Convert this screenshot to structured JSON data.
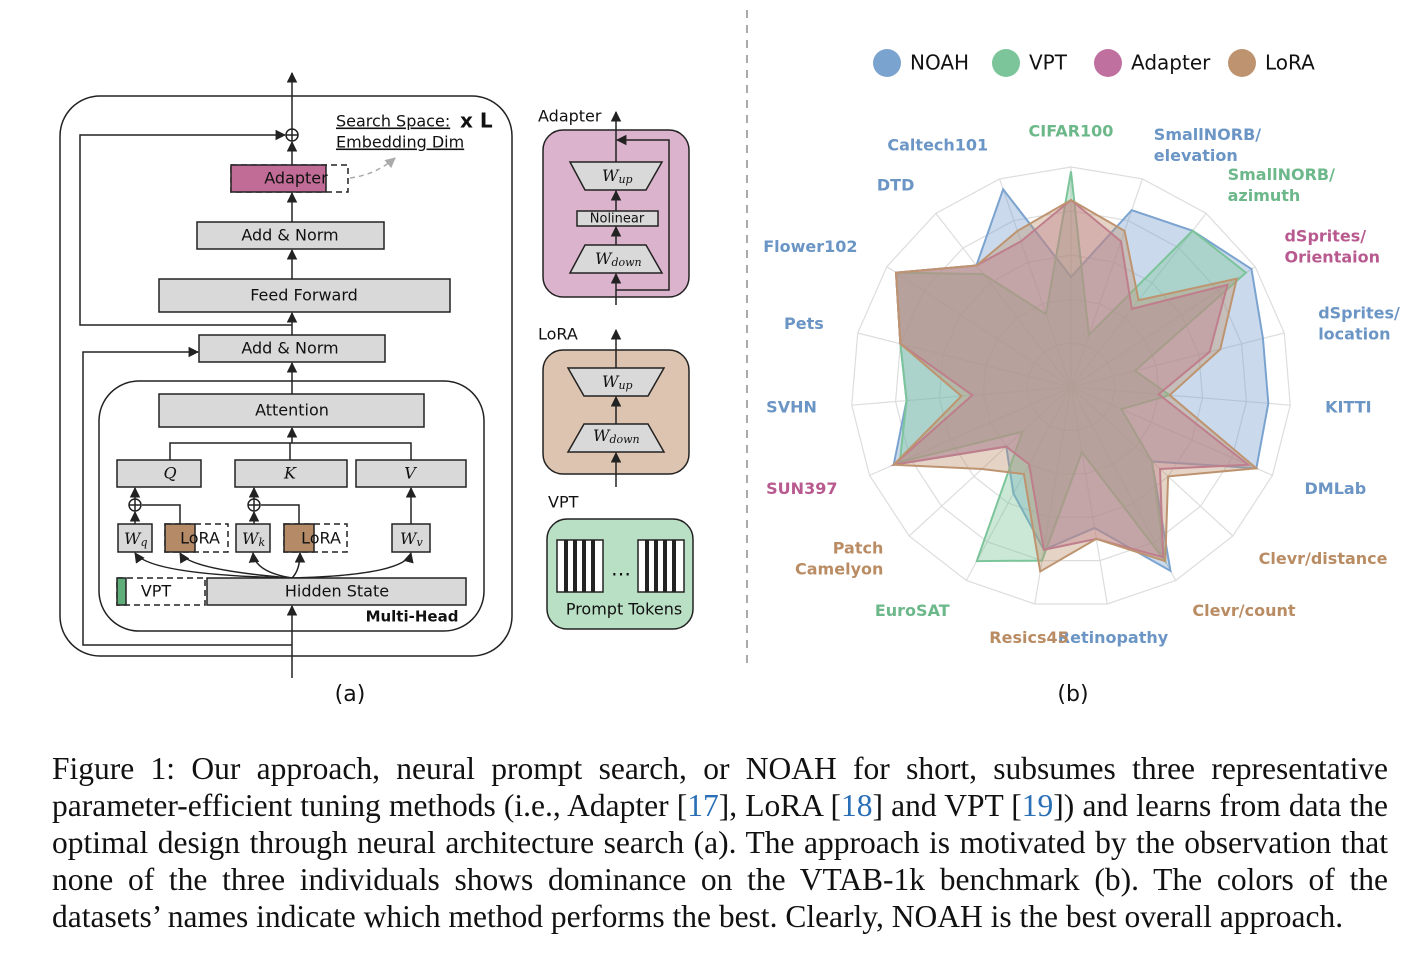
{
  "diagram": {
    "search_space": [
      "Search Space:",
      "Embedding Dim"
    ],
    "repeat": "x L",
    "adapter": "Adapter",
    "add_norm_top": "Add & Norm",
    "feed_forward": "Feed Forward",
    "add_norm_bottom": "Add & Norm",
    "attention": "Attention",
    "q": "Q",
    "k": "K",
    "v": "V",
    "wq": {
      "main": "W",
      "sub": "q"
    },
    "lora_q": "LoRA",
    "wk": {
      "main": "W",
      "sub": "k"
    },
    "lora_k": "LoRA",
    "wv": {
      "main": "W",
      "sub": "v"
    },
    "vpt": "VPT",
    "hidden_state": "Hidden State",
    "multi_head": "Multi-Head",
    "panel_label": "(a)"
  },
  "modules": {
    "adapter": {
      "title": "Adapter",
      "w_up": {
        "main": "W",
        "sub": "up"
      },
      "nonlinear": "Nolinear",
      "w_down": {
        "main": "W",
        "sub": "down"
      }
    },
    "lora": {
      "title": "LoRA",
      "w_up": {
        "main": "W",
        "sub": "up"
      },
      "w_down": {
        "main": "W",
        "sub": "down"
      }
    },
    "vpt": {
      "title": "VPT",
      "dots": "…",
      "prompt_tokens": "Prompt Tokens"
    }
  },
  "chart_data": {
    "type": "radar",
    "panel_label": "(b)",
    "categories": [
      [
        "CIFAR100"
      ],
      [
        "SmallNORB/",
        "elevation"
      ],
      [
        "SmallNORB/",
        "azimuth"
      ],
      [
        "dSprites/",
        "Orientaion"
      ],
      [
        "dSprites/",
        "location"
      ],
      [
        "KITTI"
      ],
      [
        "DMLab"
      ],
      [
        "Clevr/distance"
      ],
      [
        "Clevr/count"
      ],
      [
        "Retinopathy"
      ],
      [
        "Resics45"
      ],
      [
        "EuroSAT"
      ],
      [
        "Patch",
        "Camelyon"
      ],
      [
        "SUN397"
      ],
      [
        "SVHN"
      ],
      [
        "Pets"
      ],
      [
        "Flower102"
      ],
      [
        "DTD"
      ],
      [
        "Caltech101"
      ]
    ],
    "category_colors": [
      "#6cb88a",
      "#6a95c4",
      "#6cb88a",
      "#b85a8f",
      "#6a95c4",
      "#6a95c4",
      "#6a95c4",
      "#b98c64",
      "#b98c64",
      "#6a95c4",
      "#b98c64",
      "#6cb88a",
      "#b98c64",
      "#b85a8f",
      "#6a95c4",
      "#6a95c4",
      "#6a95c4",
      "#6a95c4",
      "#6a95c4"
    ],
    "series": [
      {
        "name": "NOAH",
        "color": "#7ba3cf",
        "values": [
          0.5,
          0.85,
          0.9,
          0.98,
          0.9,
          0.9,
          0.92,
          0.5,
          0.95,
          0.65,
          0.75,
          0.55,
          0.4,
          0.88,
          0.75,
          0.8,
          0.95,
          0.7,
          0.95
        ]
      },
      {
        "name": "VPT",
        "color": "#7cc59b",
        "values": [
          0.98,
          0.25,
          0.9,
          0.95,
          0.3,
          0.45,
          0.25,
          0.5,
          0.9,
          0.3,
          0.8,
          0.9,
          0.3,
          0.85,
          0.75,
          0.8,
          0.95,
          0.65,
          0.35
        ]
      },
      {
        "name": "Adapter",
        "color": "#c0709e",
        "values": [
          0.85,
          0.7,
          0.45,
          0.85,
          0.65,
          0.4,
          0.88,
          0.55,
          0.88,
          0.7,
          0.75,
          0.4,
          0.4,
          0.88,
          0.45,
          0.8,
          0.95,
          0.7,
          0.7
        ]
      },
      {
        "name": "LoRA",
        "color": "#be9470",
        "values": [
          0.85,
          0.75,
          0.5,
          0.9,
          0.7,
          0.45,
          0.92,
          0.6,
          0.9,
          0.7,
          0.85,
          0.45,
          0.55,
          0.88,
          0.5,
          0.8,
          0.95,
          0.7,
          0.75
        ]
      }
    ]
  },
  "caption": [
    "Figure 1: Our approach, neural prompt search, or NOAH for short, subsumes three representative parameter-efficient tuning methods (i.e., Adapter [",
    "17",
    "], LoRA [",
    "18",
    "] and VPT [",
    "19",
    "]) and learns from data the optimal design through neural architecture search (a). The approach is motivated by the observation that none of the three individuals shows dominance on the VTAB-1k benchmark (b). The colors of the datasets’ names indicate which method performs the best. Clearly, NOAH is the best overall approach."
  ]
}
